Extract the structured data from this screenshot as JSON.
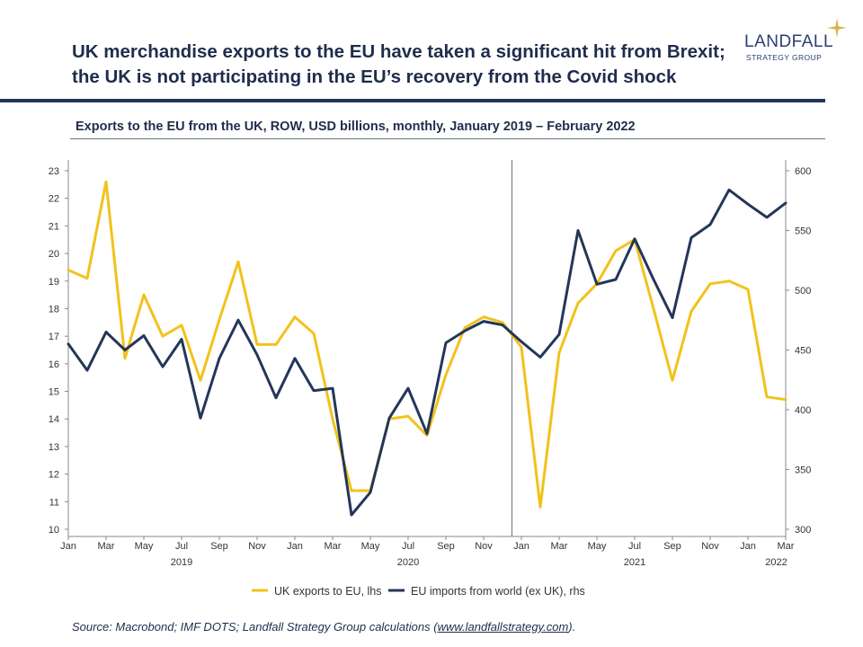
{
  "header": {
    "title_line1": "UK merchandise exports to the EU have taken a significant hit from Brexit;",
    "title_line2": "the UK is not participating in the EU’s recovery from the Covid shock"
  },
  "logo": {
    "name": "LANDFALL",
    "tagline": "STRATEGY GROUP",
    "star_color": "#d4b24c"
  },
  "footer": {
    "source_prefix": "Source: Macrobond; IMF DOTS; Landfall Strategy Group calculations (",
    "source_link": "www.landfallstrategy.com",
    "source_suffix": ")."
  },
  "chart_data": {
    "type": "line",
    "title": "Exports to the EU from the UK, ROW, USD billions, monthly, January 2019 – February 2022",
    "x_labels": [
      "Jan",
      "Mar",
      "May",
      "Jul",
      "Sep",
      "Nov",
      "Jan",
      "Mar",
      "May",
      "Jul",
      "Sep",
      "Nov",
      "Jan",
      "Mar",
      "May",
      "Jul",
      "Sep",
      "Nov",
      "Jan",
      "Mar"
    ],
    "year_labels": [
      {
        "label": "2019",
        "month_index": 6
      },
      {
        "label": "2020",
        "month_index": 18
      },
      {
        "label": "2021",
        "month_index": 30
      },
      {
        "label": "2022",
        "month_index": 37.5
      }
    ],
    "y_left": {
      "min": 10,
      "max": 23,
      "ticks": [
        "10",
        "11",
        "12",
        "13",
        "14",
        "15",
        "16",
        "17",
        "18",
        "19",
        "20",
        "21",
        "22",
        "23"
      ]
    },
    "y_right": {
      "min": 300,
      "max": 600,
      "ticks": [
        "300",
        "350",
        "400",
        "450",
        "500",
        "550",
        "600"
      ]
    },
    "divider_month_index": 23.5,
    "grid": false,
    "legend_position": "bottom",
    "series": [
      {
        "name": "UK exports to EU, lhs",
        "axis": "left",
        "color": "#f2c21b",
        "values": [
          19.4,
          19.1,
          22.6,
          16.2,
          18.5,
          17.0,
          17.4,
          15.4,
          17.6,
          19.7,
          16.7,
          16.7,
          17.7,
          17.1,
          14.0,
          11.4,
          11.4,
          14.0,
          14.1,
          13.4,
          15.6,
          17.3,
          17.7,
          17.5,
          16.6,
          10.8,
          16.4,
          18.2,
          18.9,
          20.1,
          20.5,
          18.0,
          15.4,
          17.9,
          18.9,
          19.0,
          18.7,
          14.8,
          14.7
        ]
      },
      {
        "name": "EU imports from world (ex UK), rhs",
        "axis": "right",
        "color": "#243659",
        "values": [
          455,
          433,
          465,
          450,
          462,
          436,
          459,
          393,
          443,
          475,
          446,
          410,
          443,
          416,
          418,
          312,
          331,
          393,
          418,
          380,
          456,
          466,
          474,
          471,
          457,
          444,
          463,
          550,
          505,
          509,
          543,
          509,
          477,
          544,
          555,
          584,
          572,
          561,
          573
        ]
      }
    ]
  }
}
